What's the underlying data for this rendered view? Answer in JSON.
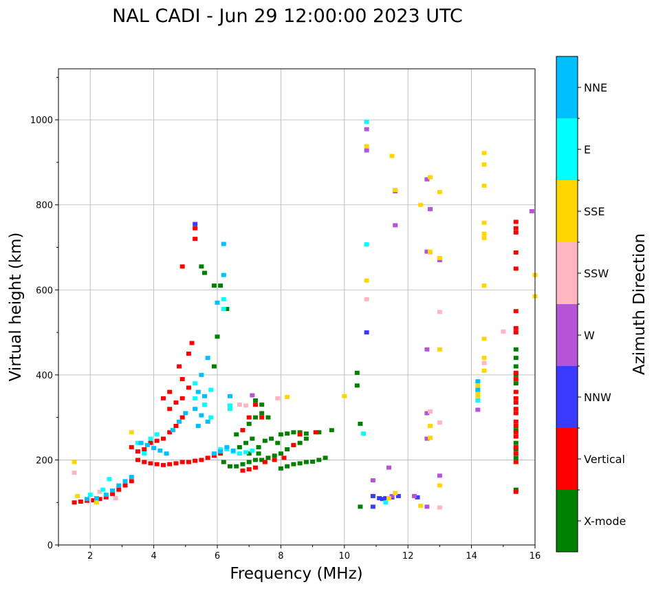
{
  "chart_data": {
    "type": "scatter",
    "title": "NAL CADI - Jun 29 12:00:00 2023 UTC",
    "xlabel": "Frequency (MHz)",
    "ylabel": "Virtual height (km)",
    "xlim": [
      1,
      16
    ],
    "ylim": [
      0,
      1120
    ],
    "x_ticks": [
      2,
      4,
      6,
      8,
      10,
      12,
      14,
      16
    ],
    "y_ticks": [
      0,
      200,
      400,
      600,
      800,
      1000
    ],
    "grid": true,
    "colorbar": {
      "label": "Azimuth Direction",
      "categories": [
        {
          "name": "X-mode",
          "color": "#008000"
        },
        {
          "name": "Vertical",
          "color": "#ff0000"
        },
        {
          "name": "NNW",
          "color": "#3a3aff"
        },
        {
          "name": "W",
          "color": "#b455d8"
        },
        {
          "name": "SSW",
          "color": "#ffb6c1"
        },
        {
          "name": "SSE",
          "color": "#ffd700"
        },
        {
          "name": "E",
          "color": "#00ffff"
        },
        {
          "name": "NNE",
          "color": "#00bfff"
        }
      ]
    },
    "series": [
      {
        "name": "X-mode",
        "points": [
          [
            5.5,
            655
          ],
          [
            5.6,
            640
          ],
          [
            5.9,
            610
          ],
          [
            6.1,
            610
          ],
          [
            5.9,
            420
          ],
          [
            6.0,
            490
          ],
          [
            6.3,
            555
          ],
          [
            10.4,
            405
          ],
          [
            10.4,
            375
          ],
          [
            10.5,
            285
          ],
          [
            10.5,
            90
          ],
          [
            6.2,
            195
          ],
          [
            6.4,
            185
          ],
          [
            6.6,
            185
          ],
          [
            6.8,
            190
          ],
          [
            7.0,
            195
          ],
          [
            7.2,
            200
          ],
          [
            7.4,
            200
          ],
          [
            7.6,
            205
          ],
          [
            7.8,
            210
          ],
          [
            8.0,
            215
          ],
          [
            8.2,
            225
          ],
          [
            8.4,
            235
          ],
          [
            8.6,
            240
          ],
          [
            8.8,
            250
          ],
          [
            8.0,
            180
          ],
          [
            8.2,
            185
          ],
          [
            8.4,
            190
          ],
          [
            8.6,
            192
          ],
          [
            8.8,
            195
          ],
          [
            9.0,
            196
          ],
          [
            9.2,
            200
          ],
          [
            9.4,
            205
          ],
          [
            8.0,
            260
          ],
          [
            8.2,
            262
          ],
          [
            8.4,
            265
          ],
          [
            8.6,
            265
          ],
          [
            8.8,
            262
          ],
          [
            9.2,
            265
          ],
          [
            9.6,
            270
          ],
          [
            6.6,
            260
          ],
          [
            6.8,
            270
          ],
          [
            7.0,
            285
          ],
          [
            7.2,
            300
          ],
          [
            7.4,
            310
          ],
          [
            7.6,
            300
          ],
          [
            6.9,
            240
          ],
          [
            7.1,
            250
          ],
          [
            7.3,
            230
          ],
          [
            7.5,
            245
          ],
          [
            7.7,
            250
          ],
          [
            7.9,
            240
          ],
          [
            7.2,
            340
          ],
          [
            7.4,
            330
          ],
          [
            6.7,
            230
          ],
          [
            7.0,
            215
          ],
          [
            7.3,
            215
          ],
          [
            15.4,
            460
          ],
          [
            15.4,
            440
          ],
          [
            15.4,
            420
          ],
          [
            15.4,
            400
          ],
          [
            15.4,
            380
          ],
          [
            15.4,
            270
          ],
          [
            15.4,
            240
          ],
          [
            15.4,
            225
          ],
          [
            15.4,
            205
          ],
          [
            15.4,
            130
          ]
        ]
      },
      {
        "name": "Vertical",
        "points": [
          [
            5.3,
            720
          ],
          [
            5.3,
            745
          ],
          [
            4.9,
            655
          ],
          [
            5.2,
            475
          ],
          [
            5.1,
            450
          ],
          [
            4.8,
            420
          ],
          [
            4.9,
            390
          ],
          [
            5.1,
            370
          ],
          [
            4.5,
            360
          ],
          [
            4.3,
            345
          ],
          [
            3.3,
            230
          ],
          [
            3.5,
            220
          ],
          [
            3.7,
            225
          ],
          [
            3.9,
            240
          ],
          [
            4.1,
            245
          ],
          [
            4.3,
            250
          ],
          [
            4.5,
            265
          ],
          [
            4.7,
            280
          ],
          [
            4.9,
            300
          ],
          [
            4.5,
            320
          ],
          [
            4.7,
            335
          ],
          [
            4.9,
            345
          ],
          [
            3.5,
            200
          ],
          [
            3.7,
            195
          ],
          [
            3.9,
            192
          ],
          [
            4.1,
            190
          ],
          [
            4.3,
            188
          ],
          [
            4.5,
            190
          ],
          [
            4.7,
            192
          ],
          [
            4.9,
            195
          ],
          [
            5.1,
            195
          ],
          [
            5.3,
            198
          ],
          [
            5.5,
            200
          ],
          [
            5.7,
            205
          ],
          [
            5.9,
            210
          ],
          [
            6.1,
            215
          ],
          [
            3.3,
            150
          ],
          [
            3.1,
            140
          ],
          [
            2.9,
            130
          ],
          [
            2.7,
            120
          ],
          [
            2.5,
            112
          ],
          [
            2.3,
            108
          ],
          [
            2.1,
            105
          ],
          [
            1.9,
            104
          ],
          [
            1.7,
            102
          ],
          [
            1.5,
            100
          ],
          [
            6.8,
            175
          ],
          [
            7.0,
            178
          ],
          [
            7.2,
            182
          ],
          [
            7.5,
            195
          ],
          [
            7.8,
            200
          ],
          [
            8.1,
            205
          ],
          [
            7.2,
            330
          ],
          [
            7.0,
            300
          ],
          [
            6.8,
            270
          ],
          [
            7.4,
            300
          ],
          [
            9.1,
            265
          ],
          [
            8.4,
            235
          ],
          [
            8.6,
            260
          ],
          [
            15.4,
            760
          ],
          [
            15.4,
            745
          ],
          [
            15.4,
            735
          ],
          [
            15.4,
            688
          ],
          [
            15.4,
            650
          ],
          [
            15.4,
            550
          ],
          [
            15.4,
            510
          ],
          [
            15.4,
            500
          ],
          [
            15.4,
            405
          ],
          [
            15.4,
            390
          ],
          [
            15.4,
            360
          ],
          [
            15.4,
            345
          ],
          [
            15.4,
            335
          ],
          [
            15.4,
            320
          ],
          [
            15.4,
            310
          ],
          [
            15.4,
            290
          ],
          [
            15.4,
            280
          ],
          [
            15.4,
            265
          ],
          [
            15.4,
            255
          ],
          [
            15.4,
            230
          ],
          [
            15.4,
            215
          ],
          [
            15.4,
            195
          ],
          [
            15.4,
            125
          ]
        ]
      },
      {
        "name": "NNW",
        "points": [
          [
            5.3,
            755
          ],
          [
            10.7,
            500
          ],
          [
            10.9,
            115
          ],
          [
            11.1,
            110
          ],
          [
            11.3,
            110
          ],
          [
            11.5,
            112
          ],
          [
            11.7,
            115
          ],
          [
            12.3,
            112
          ],
          [
            10.9,
            90
          ],
          [
            11.2,
            108
          ]
        ]
      },
      {
        "name": "W",
        "points": [
          [
            11.6,
            752
          ],
          [
            11.6,
            832
          ],
          [
            12.6,
            860
          ],
          [
            12.7,
            790
          ],
          [
            12.6,
            690
          ],
          [
            13.0,
            670
          ],
          [
            12.6,
            460
          ],
          [
            12.6,
            310
          ],
          [
            12.6,
            250
          ],
          [
            12.6,
            90
          ],
          [
            13.0,
            163
          ],
          [
            10.9,
            152
          ],
          [
            11.4,
            182
          ],
          [
            15.9,
            785
          ],
          [
            10.7,
            978
          ],
          [
            10.7,
            928
          ],
          [
            14.2,
            318
          ],
          [
            11.5,
            115
          ],
          [
            7.1,
            352
          ],
          [
            12.2,
            115
          ]
        ]
      },
      {
        "name": "SSW",
        "points": [
          [
            1.5,
            170
          ],
          [
            2.3,
            125
          ],
          [
            2.8,
            110
          ],
          [
            13.0,
            548
          ],
          [
            13.0,
            88
          ],
          [
            12.7,
            688
          ],
          [
            10.7,
            578
          ],
          [
            13.0,
            288
          ],
          [
            14.4,
            428
          ],
          [
            15.0,
            502
          ],
          [
            6.7,
            330
          ],
          [
            7.9,
            345
          ],
          [
            6.9,
            328
          ],
          [
            12.7,
            314
          ]
        ]
      },
      {
        "name": "SSE",
        "points": [
          [
            1.5,
            195
          ],
          [
            3.3,
            265
          ],
          [
            1.6,
            115
          ],
          [
            2.2,
            100
          ],
          [
            10.7,
            938
          ],
          [
            11.5,
            915
          ],
          [
            11.6,
            835
          ],
          [
            12.4,
            800
          ],
          [
            12.7,
            865
          ],
          [
            13.0,
            830
          ],
          [
            12.7,
            690
          ],
          [
            13.0,
            675
          ],
          [
            12.7,
            280
          ],
          [
            12.7,
            252
          ],
          [
            13.0,
            140
          ],
          [
            13.0,
            460
          ],
          [
            12.4,
            92
          ],
          [
            14.4,
            922
          ],
          [
            14.4,
            895
          ],
          [
            14.4,
            845
          ],
          [
            14.4,
            758
          ],
          [
            14.4,
            732
          ],
          [
            14.4,
            722
          ],
          [
            14.4,
            610
          ],
          [
            14.4,
            485
          ],
          [
            14.4,
            440
          ],
          [
            14.4,
            410
          ],
          [
            14.2,
            375
          ],
          [
            14.2,
            360
          ],
          [
            14.2,
            350
          ],
          [
            16.0,
            635
          ],
          [
            16.0,
            585
          ],
          [
            10.7,
            622
          ],
          [
            10.0,
            350
          ],
          [
            8.2,
            348
          ],
          [
            11.4,
            110
          ],
          [
            11.6,
            122
          ]
        ]
      },
      {
        "name": "E",
        "points": [
          [
            10.7,
            995
          ],
          [
            10.7,
            707
          ],
          [
            10.6,
            262
          ],
          [
            11.3,
            100
          ],
          [
            6.2,
            578
          ],
          [
            6.2,
            555
          ],
          [
            6.4,
            328
          ],
          [
            5.3,
            380
          ],
          [
            5.6,
            330
          ],
          [
            5.8,
            300
          ],
          [
            6.1,
            225
          ],
          [
            6.3,
            225
          ],
          [
            6.5,
            220
          ],
          [
            6.7,
            215
          ],
          [
            6.9,
            218
          ],
          [
            7.1,
            222
          ],
          [
            3.7,
            215
          ],
          [
            3.5,
            240
          ],
          [
            3.9,
            250
          ],
          [
            4.1,
            260
          ],
          [
            2.6,
            155
          ],
          [
            2.4,
            130
          ],
          [
            2.0,
            118
          ],
          [
            14.2,
            340
          ],
          [
            5.8,
            365
          ],
          [
            6.4,
            320
          ],
          [
            5.3,
            345
          ]
        ]
      },
      {
        "name": "NNE",
        "points": [
          [
            6.2,
            708
          ],
          [
            6.2,
            635
          ],
          [
            6.0,
            570
          ],
          [
            5.7,
            440
          ],
          [
            5.5,
            400
          ],
          [
            5.4,
            360
          ],
          [
            5.3,
            320
          ],
          [
            5.5,
            305
          ],
          [
            5.7,
            290
          ],
          [
            4.6,
            270
          ],
          [
            4.8,
            290
          ],
          [
            5.0,
            310
          ],
          [
            3.6,
            240
          ],
          [
            3.8,
            235
          ],
          [
            4.0,
            228
          ],
          [
            4.2,
            222
          ],
          [
            4.4,
            215
          ],
          [
            5.9,
            215
          ],
          [
            6.1,
            220
          ],
          [
            6.3,
            230
          ],
          [
            6.5,
            222
          ],
          [
            3.1,
            150
          ],
          [
            3.3,
            160
          ],
          [
            2.9,
            140
          ],
          [
            2.7,
            128
          ],
          [
            2.5,
            118
          ],
          [
            2.2,
            110
          ],
          [
            1.9,
            108
          ],
          [
            14.2,
            385
          ],
          [
            14.2,
            365
          ],
          [
            5.4,
            280
          ],
          [
            5.6,
            350
          ],
          [
            6.4,
            350
          ]
        ]
      }
    ]
  }
}
